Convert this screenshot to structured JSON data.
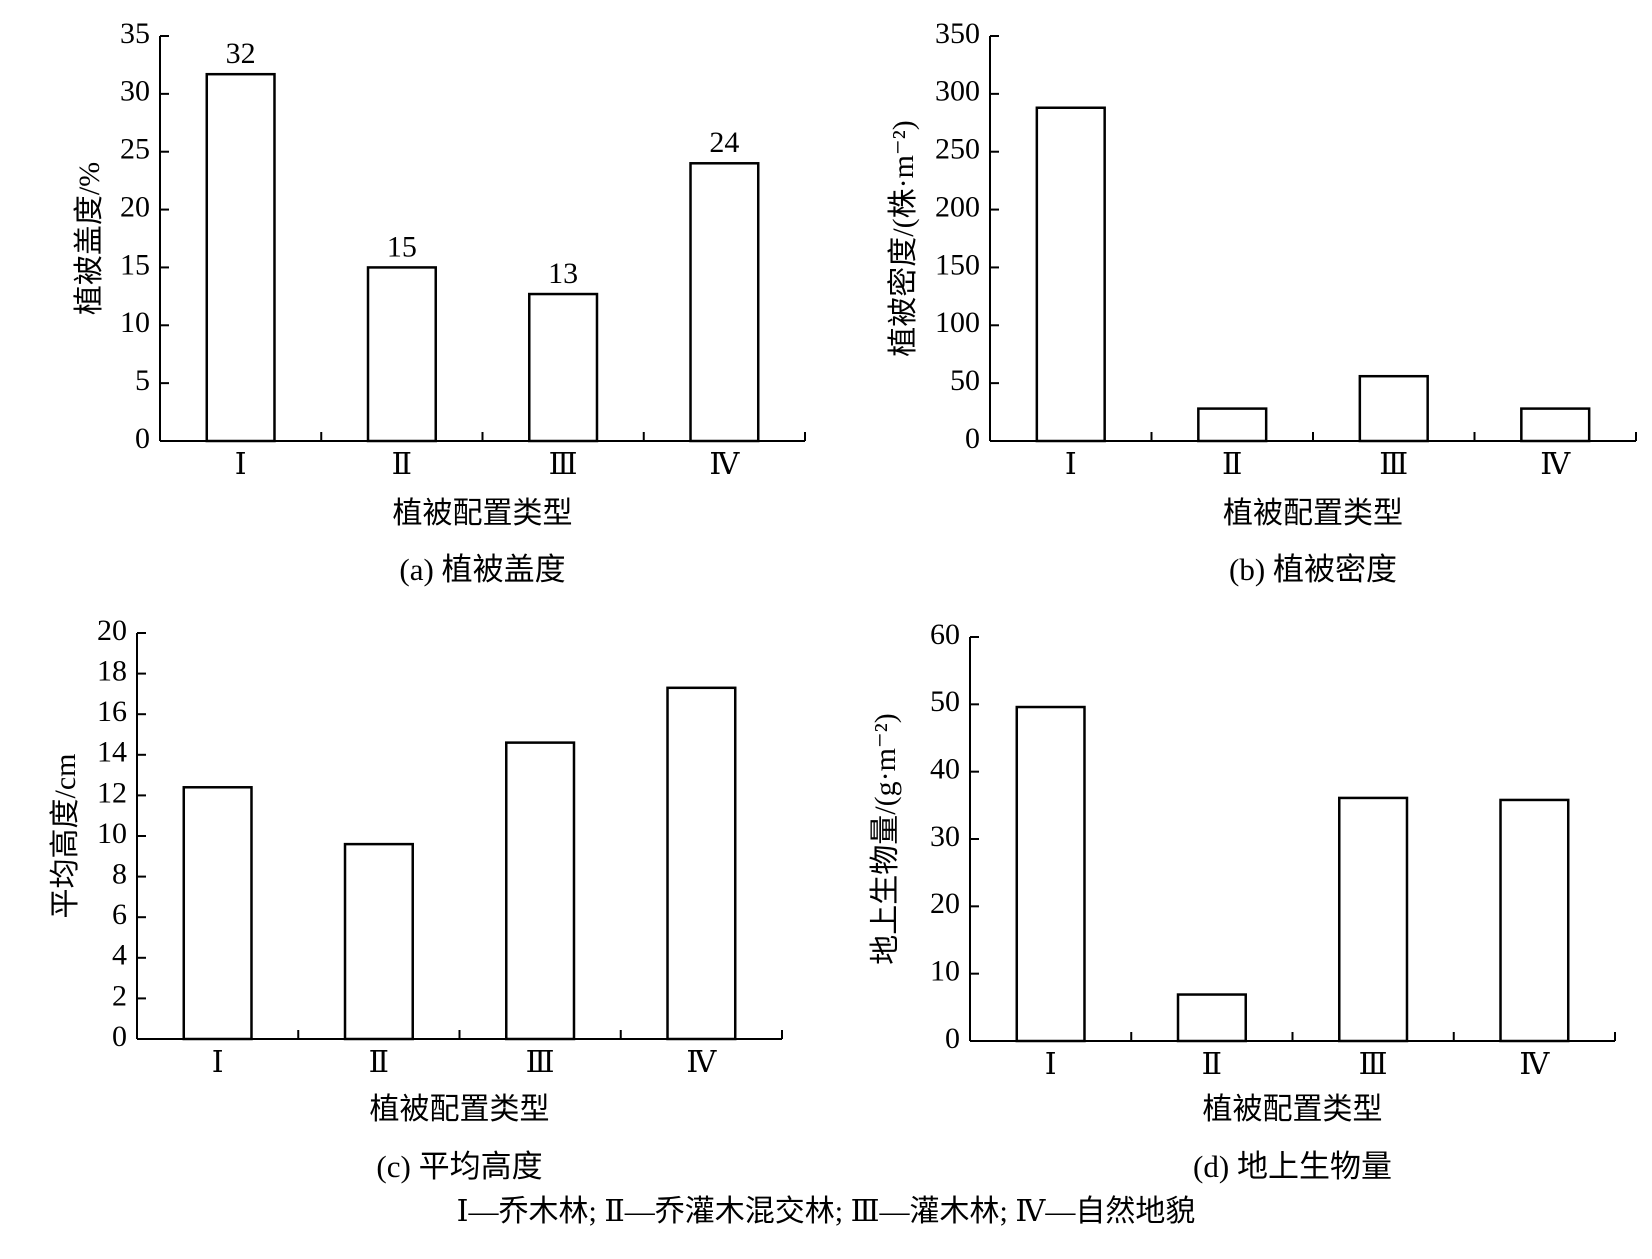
{
  "footnote": "Ⅰ—乔木林; Ⅱ—乔灌木混交林; Ⅲ—灌木林; Ⅳ—自然地貌",
  "chart_data": [
    {
      "type": "bar",
      "caption": "(a) 植被盖度",
      "xlabel": "植被配置类型",
      "ylabel": "植被盖度/%",
      "categories": [
        "Ⅰ",
        "Ⅱ",
        "Ⅲ",
        "Ⅳ"
      ],
      "values": [
        31.7,
        15.0,
        12.7,
        24.0
      ],
      "data_labels": [
        "32",
        "15",
        "13",
        "24"
      ],
      "ylim": [
        0,
        35
      ],
      "yticks": [
        "0",
        "5",
        "10",
        "15",
        "20",
        "25",
        "30",
        "35"
      ],
      "grid": false
    },
    {
      "type": "bar",
      "caption": "(b) 植被密度",
      "xlabel": "植被配置类型",
      "ylabel": "植被密度/(株·m⁻²)",
      "categories": [
        "Ⅰ",
        "Ⅱ",
        "Ⅲ",
        "Ⅳ"
      ],
      "values": [
        288,
        28,
        56,
        28
      ],
      "data_labels": [
        "",
        "",
        "",
        ""
      ],
      "ylim": [
        0,
        350
      ],
      "yticks": [
        "0",
        "50",
        "100",
        "150",
        "200",
        "250",
        "300",
        "350"
      ],
      "grid": false
    },
    {
      "type": "bar",
      "caption": "(c) 平均高度",
      "xlabel": "植被配置类型",
      "ylabel": "平均高度/cm",
      "categories": [
        "Ⅰ",
        "Ⅱ",
        "Ⅲ",
        "Ⅳ"
      ],
      "values": [
        12.4,
        9.6,
        14.6,
        17.3
      ],
      "data_labels": [
        "",
        "",
        "",
        ""
      ],
      "ylim": [
        0,
        20
      ],
      "yticks": [
        "0",
        "2",
        "4",
        "6",
        "8",
        "10",
        "12",
        "14",
        "16",
        "18",
        "20"
      ],
      "grid": false
    },
    {
      "type": "bar",
      "caption": "(d) 地上生物量",
      "xlabel": "植被配置类型",
      "ylabel": "地上生物量/(g·m⁻²)",
      "categories": [
        "Ⅰ",
        "Ⅱ",
        "Ⅲ",
        "Ⅳ"
      ],
      "values": [
        49.6,
        6.9,
        36.1,
        35.8
      ],
      "data_labels": [
        "",
        "",
        "",
        ""
      ],
      "ylim": [
        0,
        60
      ],
      "yticks": [
        "0",
        "10",
        "20",
        "30",
        "40",
        "50",
        "60"
      ],
      "grid": false
    }
  ]
}
